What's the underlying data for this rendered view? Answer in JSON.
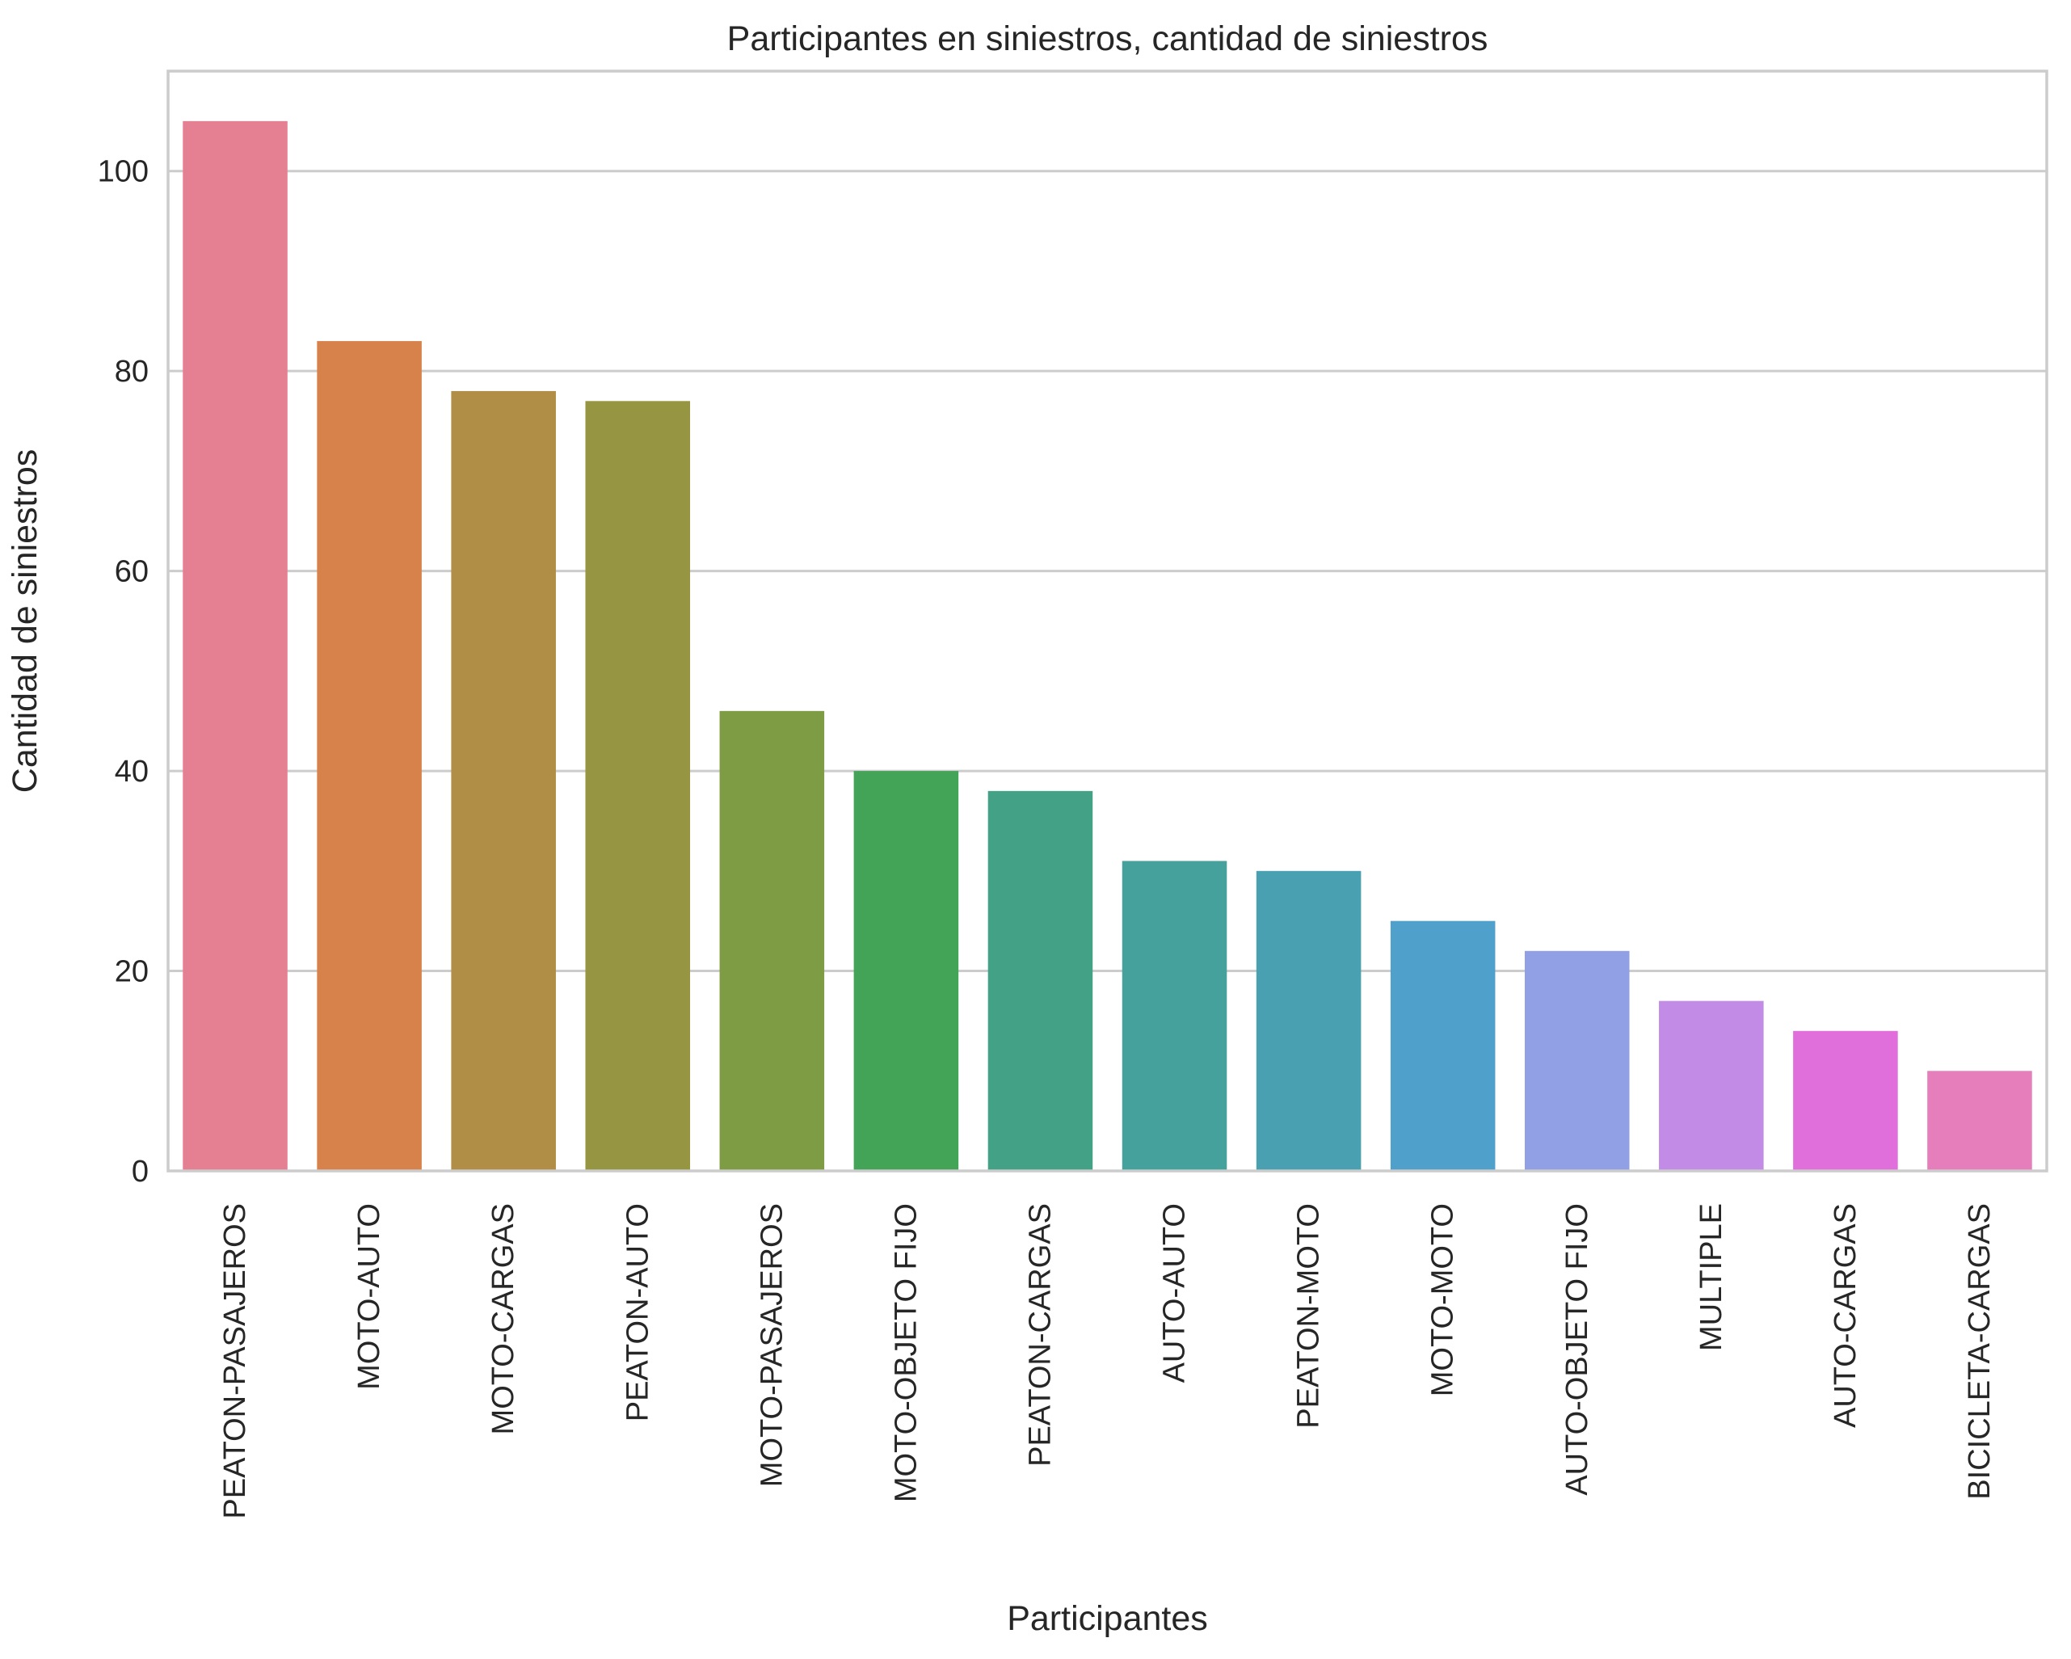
{
  "chart_data": {
    "type": "bar",
    "title": "Participantes en siniestros, cantidad de siniestros",
    "xlabel": "Participantes",
    "ylabel": "Cantidad de siniestros",
    "ylim": [
      0,
      110
    ],
    "yticks": [
      0,
      20,
      40,
      60,
      80,
      100
    ],
    "grid": true,
    "categories": [
      "PEATON-PASAJEROS",
      "MOTO-AUTO",
      "MOTO-CARGAS",
      "PEATON-AUTO",
      "MOTO-PASAJEROS",
      "MOTO-OBJETO FIJO",
      "PEATON-CARGAS",
      "AUTO-AUTO",
      "PEATON-MOTO",
      "MOTO-MOTO",
      "AUTO-OBJETO FIJO",
      "MULTIPLE",
      "AUTO-CARGAS",
      "BICICLETA-CARGAS"
    ],
    "values": [
      105,
      83,
      78,
      77,
      46,
      40,
      38,
      31,
      30,
      25,
      22,
      17,
      14,
      10
    ],
    "colors": [
      "#e58093",
      "#d7824b",
      "#b18e45",
      "#969642",
      "#7e9c44",
      "#43a458",
      "#43a286",
      "#45a19c",
      "#48a0b0",
      "#4fa0cb",
      "#919fe4",
      "#c28be5",
      "#e06fdc",
      "#e57ebb"
    ]
  }
}
